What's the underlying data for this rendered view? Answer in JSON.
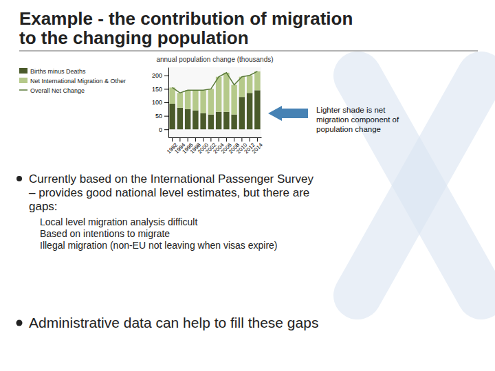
{
  "title": [
    "Example - the contribution of migration",
    "to the changing population"
  ],
  "annotations": [
    "Lighter shade is net\nmigration component of\npopulation change"
  ],
  "bullets": [
    {
      "lines": [
        "Currently based on the International Passenger Survey",
        "– provides good national level estimates, but there are",
        "gaps:"
      ],
      "sub": [
        "Local level migration analysis difficult",
        "Based on intentions to migrate",
        "Illegal migration (non-EU not leaving when visas expire)"
      ]
    },
    {
      "lines": [
        "Administrative data can help to fill these gaps"
      ]
    }
  ],
  "chart_data": {
    "type": "bar",
    "title": "annual population change (thousands)",
    "categories": [
      "1992",
      "1994",
      "1996",
      "1998",
      "2000",
      "2002",
      "2004",
      "2006",
      "2008",
      "2010",
      "2012",
      "2014"
    ],
    "series": [
      {
        "name": "Births minus Deaths",
        "type": "bar",
        "color": "#4a5a2a",
        "values": [
          95,
          80,
          75,
          70,
          60,
          55,
          65,
          65,
          55,
          120,
          135,
          145
        ]
      },
      {
        "name": "Net International Migration & Other",
        "type": "bar",
        "color": "#b5c98a",
        "values": [
          60,
          55,
          70,
          75,
          85,
          95,
          130,
          145,
          110,
          75,
          65,
          70
        ]
      },
      {
        "name": "Overall Net Change",
        "type": "line",
        "color": "#5a7a3a",
        "values": [
          155,
          135,
          145,
          145,
          145,
          150,
          195,
          210,
          165,
          195,
          200,
          215
        ]
      }
    ],
    "stacked": true,
    "ylim": [
      -30,
      230
    ],
    "yticks": [
      0,
      50,
      100,
      150,
      200
    ],
    "grid": false,
    "legend": "upper left"
  }
}
